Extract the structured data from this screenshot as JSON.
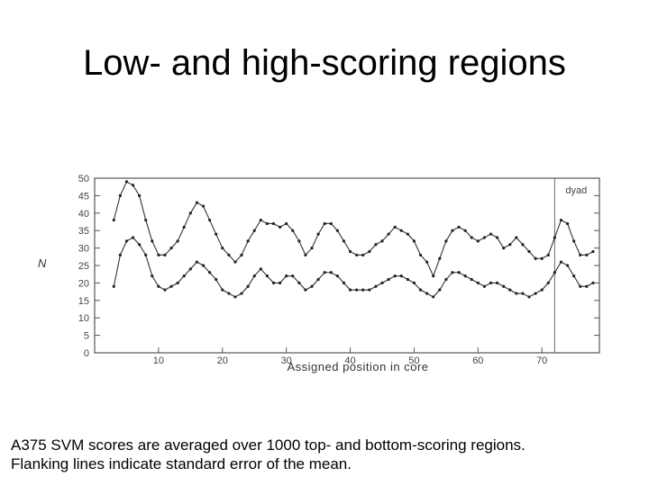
{
  "slide": {
    "title": "Low- and high-scoring regions",
    "caption_line1": "A375 SVM scores are averaged over 1000 top- and bottom-scoring regions.",
    "caption_line2": "Flanking lines indicate standard error of the mean."
  },
  "chart_data": {
    "type": "line",
    "xlabel": "Assigned position in core",
    "ylabel": "N",
    "xlim": [
      0,
      79
    ],
    "ylim": [
      0,
      50
    ],
    "x_ticks": [
      10,
      20,
      30,
      40,
      50,
      60,
      70
    ],
    "y_ticks": [
      0,
      5,
      10,
      15,
      20,
      25,
      30,
      35,
      40,
      45,
      50
    ],
    "grid": false,
    "annotation": {
      "label": "dyad",
      "x": 72
    },
    "x": [
      3,
      4,
      5,
      6,
      7,
      8,
      9,
      10,
      11,
      12,
      13,
      14,
      15,
      16,
      17,
      18,
      19,
      20,
      21,
      22,
      23,
      24,
      25,
      26,
      27,
      28,
      29,
      30,
      31,
      32,
      33,
      34,
      35,
      36,
      37,
      38,
      39,
      40,
      41,
      42,
      43,
      44,
      45,
      46,
      47,
      48,
      49,
      50,
      51,
      52,
      53,
      54,
      55,
      56,
      57,
      58,
      59,
      60,
      61,
      62,
      63,
      64,
      65,
      66,
      67,
      68,
      69,
      70,
      71,
      72,
      73,
      74,
      75,
      76,
      77,
      78
    ],
    "series": [
      {
        "values": [
          38,
          45,
          49,
          48,
          45,
          38,
          32,
          28,
          28,
          30,
          32,
          36,
          40,
          43,
          42,
          38,
          34,
          30,
          28,
          26,
          28,
          32,
          35,
          38,
          37,
          37,
          36,
          37,
          35,
          32,
          28,
          30,
          34,
          37,
          37,
          35,
          32,
          29,
          28,
          28,
          29,
          31,
          32,
          34,
          36,
          35,
          34,
          32,
          28,
          26,
          22,
          27,
          32,
          35,
          36,
          35,
          33,
          32,
          33,
          34,
          33,
          30,
          31,
          33,
          31,
          29,
          27,
          27,
          28,
          33,
          38,
          37,
          32,
          28,
          28,
          29
        ]
      },
      {
        "values": [
          19,
          28,
          32,
          33,
          31,
          28,
          22,
          19,
          18,
          19,
          20,
          22,
          24,
          26,
          25,
          23,
          21,
          18,
          17,
          16,
          17,
          19,
          22,
          24,
          22,
          20,
          20,
          22,
          22,
          20,
          18,
          19,
          21,
          23,
          23,
          22,
          20,
          18,
          18,
          18,
          18,
          19,
          20,
          21,
          22,
          22,
          21,
          20,
          18,
          17,
          16,
          18,
          21,
          23,
          23,
          22,
          21,
          20,
          19,
          20,
          20,
          19,
          18,
          17,
          17,
          16,
          17,
          18,
          20,
          23,
          26,
          25,
          22,
          19,
          19,
          20
        ]
      }
    ]
  }
}
